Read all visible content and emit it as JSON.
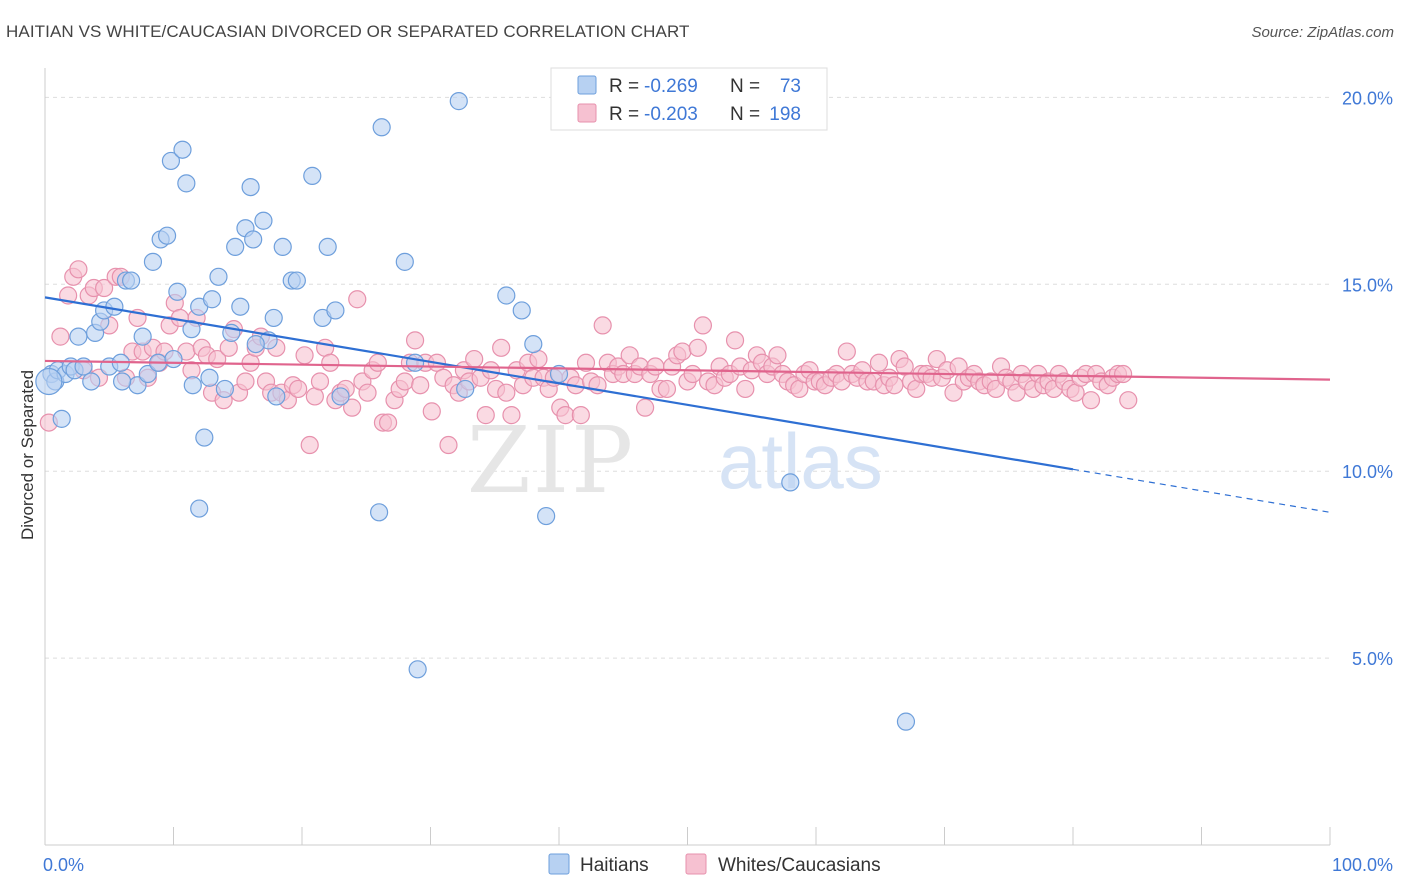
{
  "header": {
    "title": "HAITIAN VS WHITE/CAUCASIAN DIVORCED OR SEPARATED CORRELATION CHART",
    "source": "Source: ZipAtlas.com"
  },
  "watermark": {
    "zip": "ZIP",
    "atlas": "atlas"
  },
  "colors": {
    "haitian_fill": "#b7d1f2",
    "haitian_stroke": "#6e9fdc",
    "haitian_line": "#2e6fd3",
    "white_fill": "#f6c1d1",
    "white_stroke": "#e791ad",
    "white_line": "#e0648d",
    "value_text": "#3f78d6",
    "grid": "#dddddd"
  },
  "legend": {
    "rows": [
      {
        "r_label": "R =",
        "r_value": "-0.269",
        "n_label": "N =",
        "n_value": "73"
      },
      {
        "r_label": "R =",
        "r_value": "-0.203",
        "n_label": "N =",
        "n_value": "198"
      }
    ]
  },
  "bottom_legend": [
    "Haitians",
    "Whites/Caucasians"
  ],
  "chart_data": {
    "type": "scatter",
    "title": "HAITIAN VS WHITE/CAUCASIAN DIVORCED OR SEPARATED CORRELATION CHART",
    "xlabel": "",
    "ylabel": "Divorced or Separated",
    "x_tick_labels": [
      "0.0%",
      "100.0%"
    ],
    "y_tick_labels": [
      "5.0%",
      "10.0%",
      "15.0%",
      "20.0%"
    ],
    "xlim": [
      0,
      100
    ],
    "ylim": [
      0,
      21
    ],
    "y_ticks": [
      5,
      10,
      15,
      20
    ],
    "grid": true,
    "legend_position": "top-center",
    "series": [
      {
        "name": "Haitians",
        "r": -0.269,
        "n": 73,
        "trend": {
          "x0": 0,
          "y0": 14.65,
          "x1": 80,
          "y1": 10.05,
          "dash_to_x": 100,
          "dash_to_y": 8.9
        },
        "points": [
          [
            0.5,
            12.6
          ],
          [
            0.8,
            12.4
          ],
          [
            1.0,
            12.7
          ],
          [
            1.3,
            11.4
          ],
          [
            1.6,
            12.6
          ],
          [
            2.0,
            12.8
          ],
          [
            2.3,
            12.7
          ],
          [
            2.6,
            13.6
          ],
          [
            3.0,
            12.8
          ],
          [
            3.6,
            12.4
          ],
          [
            3.9,
            13.7
          ],
          [
            4.3,
            14.0
          ],
          [
            4.6,
            14.3
          ],
          [
            5.0,
            12.8
          ],
          [
            5.4,
            14.4
          ],
          [
            5.9,
            12.9
          ],
          [
            6.3,
            15.1
          ],
          [
            6.7,
            15.1
          ],
          [
            7.2,
            12.3
          ],
          [
            7.6,
            13.6
          ],
          [
            8.0,
            12.6
          ],
          [
            8.4,
            15.6
          ],
          [
            8.8,
            12.9
          ],
          [
            9.0,
            16.2
          ],
          [
            9.5,
            16.3
          ],
          [
            9.8,
            18.3
          ],
          [
            10.0,
            13.0
          ],
          [
            10.3,
            14.8
          ],
          [
            10.7,
            18.6
          ],
          [
            11.0,
            17.7
          ],
          [
            11.4,
            13.8
          ],
          [
            12.0,
            14.4
          ],
          [
            12.4,
            10.9
          ],
          [
            12.8,
            12.5
          ],
          [
            13.0,
            14.6
          ],
          [
            13.5,
            15.2
          ],
          [
            14.0,
            12.2
          ],
          [
            14.5,
            13.7
          ],
          [
            14.8,
            16.0
          ],
          [
            15.2,
            14.4
          ],
          [
            15.6,
            16.5
          ],
          [
            16.0,
            17.6
          ],
          [
            16.2,
            16.2
          ],
          [
            17.0,
            16.7
          ],
          [
            17.4,
            13.5
          ],
          [
            17.8,
            14.1
          ],
          [
            18.0,
            12.0
          ],
          [
            18.5,
            16.0
          ],
          [
            19.2,
            15.1
          ],
          [
            19.6,
            15.1
          ],
          [
            20.8,
            17.9
          ],
          [
            21.6,
            14.1
          ],
          [
            22.0,
            16.0
          ],
          [
            22.6,
            14.3
          ],
          [
            26.2,
            19.2
          ],
          [
            28.0,
            15.6
          ],
          [
            28.8,
            12.9
          ],
          [
            32.2,
            19.9
          ],
          [
            32.7,
            12.2
          ],
          [
            35.9,
            14.7
          ],
          [
            37.1,
            14.3
          ],
          [
            38.0,
            13.4
          ],
          [
            40.0,
            12.6
          ],
          [
            12.0,
            9.0
          ],
          [
            26.0,
            8.9
          ],
          [
            39.0,
            8.8
          ],
          [
            58.0,
            9.7
          ],
          [
            29.0,
            4.7
          ],
          [
            67.0,
            3.3
          ],
          [
            11.5,
            12.3
          ],
          [
            16.4,
            13.4
          ],
          [
            23.0,
            12.0
          ],
          [
            6.0,
            12.4
          ]
        ]
      },
      {
        "name": "Whites/Caucasians",
        "r": -0.203,
        "n": 198,
        "trend": {
          "x0": 0,
          "y0": 12.95,
          "x1": 100,
          "y1": 12.45
        },
        "points": [
          [
            0.3,
            11.3
          ],
          [
            1.2,
            13.6
          ],
          [
            1.8,
            14.7
          ],
          [
            2.2,
            15.2
          ],
          [
            2.6,
            15.4
          ],
          [
            3.0,
            12.7
          ],
          [
            3.4,
            14.7
          ],
          [
            3.8,
            14.9
          ],
          [
            4.2,
            12.5
          ],
          [
            4.6,
            14.9
          ],
          [
            5.0,
            13.9
          ],
          [
            5.5,
            15.2
          ],
          [
            5.9,
            15.2
          ],
          [
            6.3,
            12.5
          ],
          [
            6.8,
            13.2
          ],
          [
            7.2,
            14.1
          ],
          [
            7.6,
            13.2
          ],
          [
            8.0,
            12.5
          ],
          [
            8.4,
            13.3
          ],
          [
            8.9,
            12.9
          ],
          [
            9.3,
            13.2
          ],
          [
            9.7,
            13.9
          ],
          [
            10.1,
            14.5
          ],
          [
            10.5,
            14.1
          ],
          [
            11.0,
            13.2
          ],
          [
            11.4,
            12.7
          ],
          [
            11.8,
            14.1
          ],
          [
            12.2,
            13.3
          ],
          [
            12.6,
            13.1
          ],
          [
            13.0,
            12.1
          ],
          [
            13.4,
            13.0
          ],
          [
            13.9,
            11.9
          ],
          [
            14.3,
            13.3
          ],
          [
            14.7,
            13.8
          ],
          [
            15.1,
            12.1
          ],
          [
            15.6,
            12.4
          ],
          [
            16.0,
            12.9
          ],
          [
            16.4,
            13.3
          ],
          [
            16.8,
            13.6
          ],
          [
            17.2,
            12.4
          ],
          [
            17.6,
            12.1
          ],
          [
            18.0,
            13.3
          ],
          [
            18.4,
            12.1
          ],
          [
            18.9,
            11.9
          ],
          [
            19.3,
            12.3
          ],
          [
            19.7,
            12.2
          ],
          [
            20.2,
            13.1
          ],
          [
            20.6,
            10.7
          ],
          [
            21.0,
            12.0
          ],
          [
            21.4,
            12.4
          ],
          [
            21.8,
            13.3
          ],
          [
            22.2,
            12.9
          ],
          [
            22.6,
            11.9
          ],
          [
            23.0,
            12.1
          ],
          [
            23.4,
            12.2
          ],
          [
            23.9,
            11.7
          ],
          [
            24.3,
            14.6
          ],
          [
            24.7,
            12.4
          ],
          [
            25.1,
            12.1
          ],
          [
            25.5,
            12.7
          ],
          [
            25.9,
            12.9
          ],
          [
            26.3,
            11.3
          ],
          [
            26.7,
            11.3
          ],
          [
            27.2,
            11.9
          ],
          [
            27.6,
            12.2
          ],
          [
            28.0,
            12.4
          ],
          [
            28.4,
            12.9
          ],
          [
            28.8,
            13.5
          ],
          [
            29.2,
            12.3
          ],
          [
            29.6,
            12.9
          ],
          [
            30.1,
            11.6
          ],
          [
            30.5,
            12.9
          ],
          [
            31.0,
            12.5
          ],
          [
            31.4,
            10.7
          ],
          [
            31.8,
            12.3
          ],
          [
            32.2,
            12.1
          ],
          [
            32.6,
            12.7
          ],
          [
            33.0,
            12.4
          ],
          [
            33.4,
            13.0
          ],
          [
            33.9,
            12.5
          ],
          [
            34.3,
            11.5
          ],
          [
            34.7,
            12.7
          ],
          [
            35.1,
            12.2
          ],
          [
            35.5,
            13.3
          ],
          [
            35.9,
            12.1
          ],
          [
            36.3,
            11.5
          ],
          [
            36.7,
            12.7
          ],
          [
            37.2,
            12.3
          ],
          [
            37.6,
            12.9
          ],
          [
            38.0,
            12.5
          ],
          [
            38.4,
            13.0
          ],
          [
            38.8,
            12.5
          ],
          [
            39.2,
            12.2
          ],
          [
            39.6,
            12.5
          ],
          [
            40.1,
            11.7
          ],
          [
            40.5,
            11.5
          ],
          [
            40.9,
            12.5
          ],
          [
            41.3,
            12.3
          ],
          [
            41.7,
            11.5
          ],
          [
            42.1,
            12.9
          ],
          [
            42.5,
            12.4
          ],
          [
            43.0,
            12.3
          ],
          [
            43.4,
            13.9
          ],
          [
            43.8,
            12.9
          ],
          [
            44.2,
            12.6
          ],
          [
            44.6,
            12.8
          ],
          [
            45.0,
            12.6
          ],
          [
            45.5,
            13.1
          ],
          [
            45.9,
            12.6
          ],
          [
            46.3,
            12.8
          ],
          [
            46.7,
            11.7
          ],
          [
            47.1,
            12.6
          ],
          [
            47.5,
            12.8
          ],
          [
            47.9,
            12.2
          ],
          [
            48.4,
            12.2
          ],
          [
            48.8,
            12.8
          ],
          [
            49.2,
            13.1
          ],
          [
            49.6,
            13.2
          ],
          [
            50.0,
            12.4
          ],
          [
            50.4,
            12.6
          ],
          [
            50.8,
            13.3
          ],
          [
            51.2,
            13.9
          ],
          [
            51.6,
            12.4
          ],
          [
            52.1,
            12.3
          ],
          [
            52.5,
            12.8
          ],
          [
            52.9,
            12.5
          ],
          [
            53.3,
            12.6
          ],
          [
            53.7,
            13.5
          ],
          [
            54.1,
            12.8
          ],
          [
            54.5,
            12.2
          ],
          [
            55.0,
            12.7
          ],
          [
            55.4,
            13.1
          ],
          [
            55.8,
            12.9
          ],
          [
            56.2,
            12.6
          ],
          [
            56.6,
            12.8
          ],
          [
            57.0,
            13.1
          ],
          [
            57.4,
            12.6
          ],
          [
            57.8,
            12.4
          ],
          [
            58.3,
            12.3
          ],
          [
            58.7,
            12.2
          ],
          [
            59.1,
            12.6
          ],
          [
            59.5,
            12.7
          ],
          [
            59.9,
            12.4
          ],
          [
            60.3,
            12.4
          ],
          [
            60.7,
            12.3
          ],
          [
            61.2,
            12.5
          ],
          [
            61.6,
            12.6
          ],
          [
            62.0,
            12.4
          ],
          [
            62.4,
            13.2
          ],
          [
            62.8,
            12.6
          ],
          [
            63.2,
            12.5
          ],
          [
            63.6,
            12.7
          ],
          [
            64.0,
            12.4
          ],
          [
            64.5,
            12.4
          ],
          [
            64.9,
            12.9
          ],
          [
            65.3,
            12.3
          ],
          [
            65.7,
            12.5
          ],
          [
            66.1,
            12.3
          ],
          [
            66.5,
            13.0
          ],
          [
            66.9,
            12.8
          ],
          [
            67.4,
            12.4
          ],
          [
            67.8,
            12.2
          ],
          [
            68.2,
            12.6
          ],
          [
            68.6,
            12.6
          ],
          [
            69.0,
            12.5
          ],
          [
            69.4,
            13.0
          ],
          [
            69.8,
            12.5
          ],
          [
            70.2,
            12.7
          ],
          [
            70.7,
            12.1
          ],
          [
            71.1,
            12.8
          ],
          [
            71.5,
            12.4
          ],
          [
            71.9,
            12.5
          ],
          [
            72.3,
            12.6
          ],
          [
            72.7,
            12.4
          ],
          [
            73.1,
            12.3
          ],
          [
            73.6,
            12.4
          ],
          [
            74.0,
            12.2
          ],
          [
            74.4,
            12.8
          ],
          [
            74.8,
            12.5
          ],
          [
            75.2,
            12.4
          ],
          [
            75.6,
            12.1
          ],
          [
            76.0,
            12.6
          ],
          [
            76.4,
            12.4
          ],
          [
            76.9,
            12.2
          ],
          [
            77.3,
            12.6
          ],
          [
            77.7,
            12.3
          ],
          [
            78.1,
            12.4
          ],
          [
            78.5,
            12.2
          ],
          [
            78.9,
            12.6
          ],
          [
            79.3,
            12.4
          ],
          [
            79.8,
            12.2
          ],
          [
            80.2,
            12.1
          ],
          [
            80.6,
            12.5
          ],
          [
            81.0,
            12.6
          ],
          [
            81.4,
            11.9
          ],
          [
            81.8,
            12.6
          ],
          [
            82.2,
            12.4
          ],
          [
            82.7,
            12.3
          ],
          [
            83.1,
            12.5
          ],
          [
            83.5,
            12.6
          ],
          [
            83.9,
            12.6
          ],
          [
            84.3,
            11.9
          ]
        ]
      }
    ]
  }
}
